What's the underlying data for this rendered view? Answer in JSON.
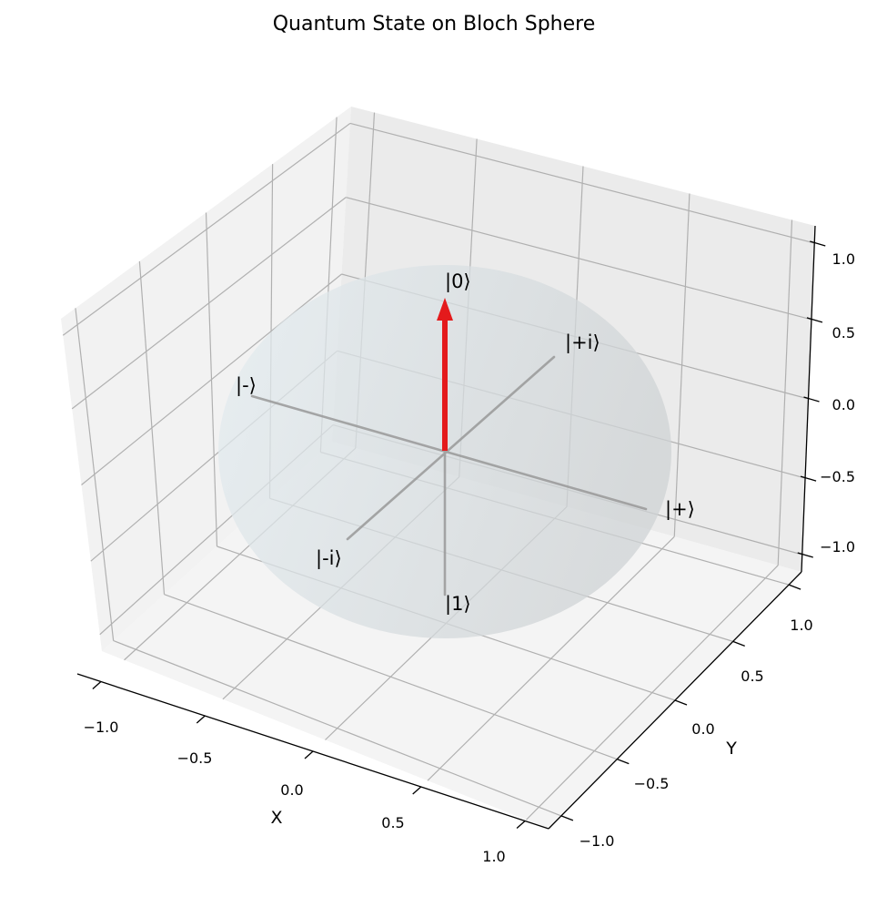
{
  "chart_data": {
    "type": "3d-vector",
    "title": "Quantum State on Bloch Sphere",
    "xlabel": "X",
    "ylabel": "Y",
    "zlabel": "",
    "xlim": [
      -1.2,
      1.2
    ],
    "ylim": [
      -1.2,
      1.2
    ],
    "zlim": [
      -1.2,
      1.2
    ],
    "x_ticks": [
      "−1.0",
      "−0.5",
      "0.0",
      "0.5",
      "1.0"
    ],
    "y_ticks": [
      "−1.0",
      "−0.5",
      "0.0",
      "0.5",
      "1.0"
    ],
    "z_ticks": [
      "−1.0",
      "−0.5",
      "0.0",
      "0.5",
      "1.0"
    ],
    "grid": true,
    "sphere": {
      "radius": 1.0,
      "color": "#d5dde0"
    },
    "basis_states": [
      {
        "label": "|0⟩",
        "position": [
          0,
          0,
          1
        ]
      },
      {
        "label": "|1⟩",
        "position": [
          0,
          0,
          -1
        ]
      },
      {
        "label": "|+⟩",
        "position": [
          1,
          0,
          0
        ]
      },
      {
        "label": "|-⟩",
        "position": [
          -1,
          0,
          0
        ]
      },
      {
        "label": "|+i⟩",
        "position": [
          0,
          1,
          0
        ]
      },
      {
        "label": "|-i⟩",
        "position": [
          0,
          -1,
          0
        ]
      }
    ],
    "state_vector": {
      "components": [
        0,
        0,
        1
      ],
      "color": "#e41a1c"
    },
    "axis_line_color": "#999999"
  }
}
